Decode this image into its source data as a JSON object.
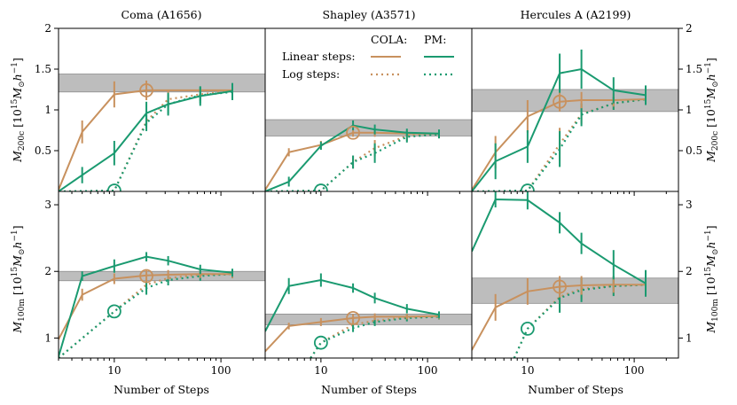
{
  "chart_data": {
    "type": "line",
    "columns": [
      {
        "title": "Coma (A1656)"
      },
      {
        "title": "Shapley (A3571)"
      },
      {
        "title": "Hercules A (A2199)"
      }
    ],
    "xlabel": "Number of Steps",
    "xscale": "log",
    "xlim": [
      3,
      260
    ],
    "xticks": [
      10,
      100
    ],
    "xtick_labels": [
      "10",
      "100"
    ],
    "rows": [
      {
        "ylabel_main": "M",
        "ylabel_sub": "200c",
        "ylabel_unit": "[10",
        "ylabel_exp": "15",
        "ylabel_unit_tail": "M",
        "ylabel_sun": "⊙",
        "ylabel_h": "h",
        "ylabel_hexp": "−1",
        "ylabel_close": "]",
        "ylim": [
          0,
          2
        ],
        "yticks": [
          0.5,
          1,
          1.5,
          2
        ],
        "ytick_labels": [
          "0.5",
          "1",
          "1.5",
          "2"
        ]
      },
      {
        "ylabel_main": "M",
        "ylabel_sub": "100m",
        "ylabel_unit": "[10",
        "ylabel_exp": "15",
        "ylabel_unit_tail": "M",
        "ylabel_sun": "⊙",
        "ylabel_h": "h",
        "ylabel_hexp": "−1",
        "ylabel_close": "]",
        "ylim": [
          0.7,
          3.2
        ],
        "yticks": [
          1,
          2,
          3
        ],
        "ytick_labels": [
          "1",
          "2",
          "3"
        ]
      }
    ],
    "legend": {
      "header_cola": "COLA:",
      "header_pm": "PM:",
      "row_linear": "Linear steps:",
      "row_log": "Log steps:",
      "placement": "upper panel of middle column"
    },
    "colors": {
      "cola": "#c8915e",
      "pm": "#1a9a70",
      "band": "#bdbdbd"
    },
    "panels": [
      {
        "col": 0,
        "row": 0,
        "band": [
          1.22,
          1.44
        ],
        "marker": {
          "series": "cola",
          "x": 20,
          "y": 1.24
        },
        "marker_pm": {
          "x": 10,
          "y": 0.01
        },
        "series": [
          {
            "method": "cola",
            "steps": "linear",
            "x": [
              3,
              5,
              10,
              20,
              128
            ],
            "y": [
              0.02,
              0.73,
              1.19,
              1.24,
              1.24
            ],
            "err": [
              0,
              0.14,
              0.16,
              0.12,
              0.08
            ]
          },
          {
            "method": "pm",
            "steps": "linear",
            "x": [
              3,
              5,
              10,
              20,
              32,
              64,
              128
            ],
            "y": [
              0.0,
              0.2,
              0.47,
              0.96,
              1.07,
              1.17,
              1.23
            ],
            "err": [
              0,
              0.1,
              0.15,
              0.14,
              0.14,
              0.12,
              0.1
            ]
          },
          {
            "method": "cola",
            "steps": "log",
            "x": [
              3,
              10,
              20,
              32,
              64,
              128
            ],
            "y": [
              0.0,
              0.01,
              0.86,
              1.13,
              1.19,
              1.23
            ],
            "err": [
              0,
              0,
              0.08,
              0.1,
              0.08,
              0.08
            ]
          },
          {
            "method": "pm",
            "steps": "log",
            "x": [
              3,
              10,
              20,
              32,
              64,
              128
            ],
            "y": [
              0.0,
              0.01,
              0.84,
              1.07,
              1.18,
              1.22
            ],
            "err": [
              0,
              0,
              0.1,
              0.12,
              0.1,
              0.1
            ]
          }
        ]
      },
      {
        "col": 1,
        "row": 0,
        "band": [
          0.68,
          0.88
        ],
        "marker": {
          "series": "cola",
          "x": 20,
          "y": 0.72
        },
        "marker_pm": {
          "x": 10,
          "y": 0.01
        },
        "series": [
          {
            "method": "cola",
            "steps": "linear",
            "x": [
              3,
              5,
              10,
              20,
              32,
              64,
              128
            ],
            "y": [
              0.02,
              0.48,
              0.57,
              0.72,
              0.72,
              0.71,
              0.71
            ],
            "err": [
              0,
              0.05,
              0.05,
              0.05,
              0.05,
              0.04,
              0.04
            ]
          },
          {
            "method": "pm",
            "steps": "linear",
            "x": [
              3,
              5,
              10,
              20,
              32,
              64,
              128
            ],
            "y": [
              0.0,
              0.12,
              0.56,
              0.81,
              0.76,
              0.72,
              0.71
            ],
            "err": [
              0,
              0.06,
              0.05,
              0.06,
              0.06,
              0.05,
              0.05
            ]
          },
          {
            "method": "cola",
            "steps": "log",
            "x": [
              3,
              10,
              20,
              32,
              64,
              128
            ],
            "y": [
              0.0,
              0.01,
              0.36,
              0.53,
              0.68,
              0.71
            ],
            "err": [
              0,
              0,
              0.08,
              0.1,
              0.06,
              0.04
            ]
          },
          {
            "method": "pm",
            "steps": "log",
            "x": [
              3,
              10,
              20,
              32,
              64,
              128
            ],
            "y": [
              0.0,
              0.01,
              0.36,
              0.47,
              0.67,
              0.7
            ],
            "err": [
              0,
              0,
              0.08,
              0.12,
              0.07,
              0.05
            ]
          }
        ]
      },
      {
        "col": 2,
        "row": 0,
        "band": [
          0.98,
          1.25
        ],
        "marker": {
          "series": "cola",
          "x": 20,
          "y": 1.1
        },
        "marker_pm": {
          "x": 10,
          "y": 0.01
        },
        "series": [
          {
            "method": "cola",
            "steps": "linear",
            "x": [
              3,
              5,
              10,
              20,
              32,
              64,
              128
            ],
            "y": [
              0.02,
              0.48,
              0.92,
              1.1,
              1.12,
              1.12,
              1.13
            ],
            "err": [
              0,
              0.2,
              0.2,
              0.12,
              0.1,
              0.08,
              0.06
            ]
          },
          {
            "method": "pm",
            "steps": "linear",
            "x": [
              3,
              5,
              10,
              20,
              32,
              64,
              128
            ],
            "y": [
              0.0,
              0.37,
              0.55,
              1.45,
              1.5,
              1.24,
              1.18
            ],
            "err": [
              0,
              0.22,
              0.2,
              0.24,
              0.24,
              0.16,
              0.12
            ]
          },
          {
            "method": "cola",
            "steps": "log",
            "x": [
              3,
              10,
              20,
              32,
              64,
              128
            ],
            "y": [
              0.0,
              0.01,
              0.58,
              0.95,
              1.08,
              1.13
            ],
            "err": [
              0,
              0,
              0.2,
              0.12,
              0.08,
              0.06
            ]
          },
          {
            "method": "pm",
            "steps": "log",
            "x": [
              3,
              10,
              20,
              32,
              64,
              128
            ],
            "y": [
              0.0,
              0.01,
              0.52,
              0.94,
              1.08,
              1.13
            ],
            "err": [
              0,
              0,
              0.22,
              0.14,
              0.08,
              0.06
            ]
          }
        ]
      },
      {
        "col": 0,
        "row": 1,
        "band": [
          1.86,
          2.0
        ],
        "marker": {
          "series": "cola",
          "x": 20,
          "y": 1.93
        },
        "marker_pm": {
          "x": 10,
          "y": 1.4
        },
        "series": [
          {
            "method": "cola",
            "steps": "linear",
            "x": [
              3,
              5,
              10,
              20,
              32,
              64,
              128
            ],
            "y": [
              0.98,
              1.65,
              1.89,
              1.94,
              1.95,
              1.96,
              1.96
            ],
            "err": [
              0,
              0.09,
              0.08,
              0.07,
              0.07,
              0.06,
              0.06
            ]
          },
          {
            "method": "pm",
            "steps": "linear",
            "x": [
              3,
              5,
              10,
              20,
              32,
              64,
              128
            ],
            "y": [
              0.72,
              1.93,
              2.08,
              2.22,
              2.16,
              2.03,
              1.98
            ],
            "err": [
              0,
              0.07,
              0.1,
              0.07,
              0.07,
              0.07,
              0.06
            ]
          },
          {
            "method": "cola",
            "steps": "log",
            "x": [
              3,
              10,
              20,
              32,
              64,
              128
            ],
            "y": [
              0.7,
              1.4,
              1.8,
              1.9,
              1.95,
              1.96
            ],
            "err": [
              0,
              0,
              0.08,
              0.07,
              0.06,
              0.06
            ]
          },
          {
            "method": "pm",
            "steps": "log",
            "x": [
              3,
              10,
              20,
              32,
              64,
              128
            ],
            "y": [
              0.7,
              1.4,
              1.75,
              1.87,
              1.93,
              1.96
            ],
            "err": [
              0,
              0,
              0.1,
              0.08,
              0.07,
              0.06
            ]
          }
        ]
      },
      {
        "col": 1,
        "row": 1,
        "band": [
          1.2,
          1.36
        ],
        "marker": {
          "series": "cola",
          "x": 20,
          "y": 1.3
        },
        "marker_pm": {
          "x": 10,
          "y": 0.93
        },
        "series": [
          {
            "method": "cola",
            "steps": "linear",
            "x": [
              3,
              5,
              10,
              20,
              32,
              64,
              128
            ],
            "y": [
              0.8,
              1.18,
              1.24,
              1.3,
              1.32,
              1.32,
              1.33
            ],
            "err": [
              0,
              0.05,
              0.06,
              0.06,
              0.05,
              0.04,
              0.04
            ]
          },
          {
            "method": "pm",
            "steps": "linear",
            "x": [
              3,
              5,
              10,
              20,
              32,
              64,
              128
            ],
            "y": [
              1.1,
              1.78,
              1.87,
              1.75,
              1.6,
              1.44,
              1.35
            ],
            "err": [
              0,
              0.12,
              0.1,
              0.07,
              0.08,
              0.07,
              0.05
            ]
          },
          {
            "method": "cola",
            "steps": "log",
            "x": [
              8,
              10,
              20,
              32,
              64,
              128
            ],
            "y": [
              0.7,
              0.93,
              1.2,
              1.26,
              1.31,
              1.32
            ],
            "err": [
              0,
              0,
              0.06,
              0.05,
              0.05,
              0.04
            ]
          },
          {
            "method": "pm",
            "steps": "log",
            "x": [
              8,
              10,
              20,
              32,
              64,
              128
            ],
            "y": [
              0.7,
              0.93,
              1.15,
              1.24,
              1.3,
              1.32
            ],
            "err": [
              0,
              0,
              0.06,
              0.06,
              0.05,
              0.04
            ]
          }
        ]
      },
      {
        "col": 2,
        "row": 1,
        "band": [
          1.52,
          1.9
        ],
        "marker": {
          "series": "cola",
          "x": 20,
          "y": 1.77
        },
        "marker_pm": {
          "x": 10,
          "y": 1.14
        },
        "series": [
          {
            "method": "cola",
            "steps": "linear",
            "x": [
              3,
              5,
              10,
              20,
              32,
              64,
              128
            ],
            "y": [
              0.82,
              1.46,
              1.7,
              1.77,
              1.79,
              1.8,
              1.8
            ],
            "err": [
              0,
              0.2,
              0.2,
              0.16,
              0.14,
              0.12,
              0.12
            ]
          },
          {
            "method": "pm",
            "steps": "linear",
            "x": [
              3,
              5,
              10,
              20,
              32,
              64,
              128
            ],
            "y": [
              2.3,
              3.08,
              3.07,
              2.73,
              2.42,
              2.1,
              1.82
            ],
            "err": [
              0,
              0.12,
              0.14,
              0.16,
              0.16,
              0.22,
              0.2
            ]
          },
          {
            "method": "cola",
            "steps": "log",
            "x": [
              7.5,
              10,
              20,
              32,
              64,
              128
            ],
            "y": [
              0.7,
              1.14,
              1.62,
              1.74,
              1.78,
              1.8
            ],
            "err": [
              0,
              0,
              0.22,
              0.16,
              0.14,
              0.12
            ]
          },
          {
            "method": "pm",
            "steps": "log",
            "x": [
              7.5,
              10,
              20,
              32,
              64,
              128
            ],
            "y": [
              0.7,
              1.14,
              1.6,
              1.72,
              1.78,
              1.8
            ],
            "err": [
              0,
              0,
              0.22,
              0.18,
              0.15,
              0.12
            ]
          }
        ]
      }
    ]
  }
}
